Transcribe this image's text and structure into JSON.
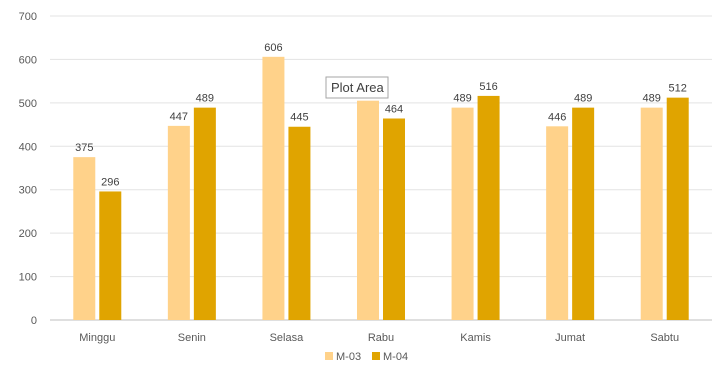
{
  "chart_data": {
    "type": "bar",
    "categories": [
      "Minggu",
      "Senin",
      "Selasa",
      "Rabu",
      "Kamis",
      "Jumat",
      "Sabtu"
    ],
    "series": [
      {
        "name": "M-03",
        "values": [
          375,
          447,
          606,
          505,
          489,
          446,
          489
        ],
        "color": "#FFD28A",
        "labels": [
          "375",
          "447",
          "606",
          "",
          "489",
          "446",
          "489"
        ]
      },
      {
        "name": "M-04",
        "values": [
          296,
          489,
          445,
          464,
          516,
          489,
          512
        ],
        "color": "#E0A400",
        "labels": [
          "296",
          "489",
          "445",
          "464",
          "516",
          "489",
          "512"
        ]
      }
    ],
    "yticks": [
      "0",
      "100",
      "200",
      "300",
      "400",
      "500",
      "600",
      "700"
    ],
    "ylim": [
      0,
      700
    ],
    "grid": true,
    "legend_position": "bottom"
  },
  "tooltip": {
    "text": "Plot Area"
  }
}
